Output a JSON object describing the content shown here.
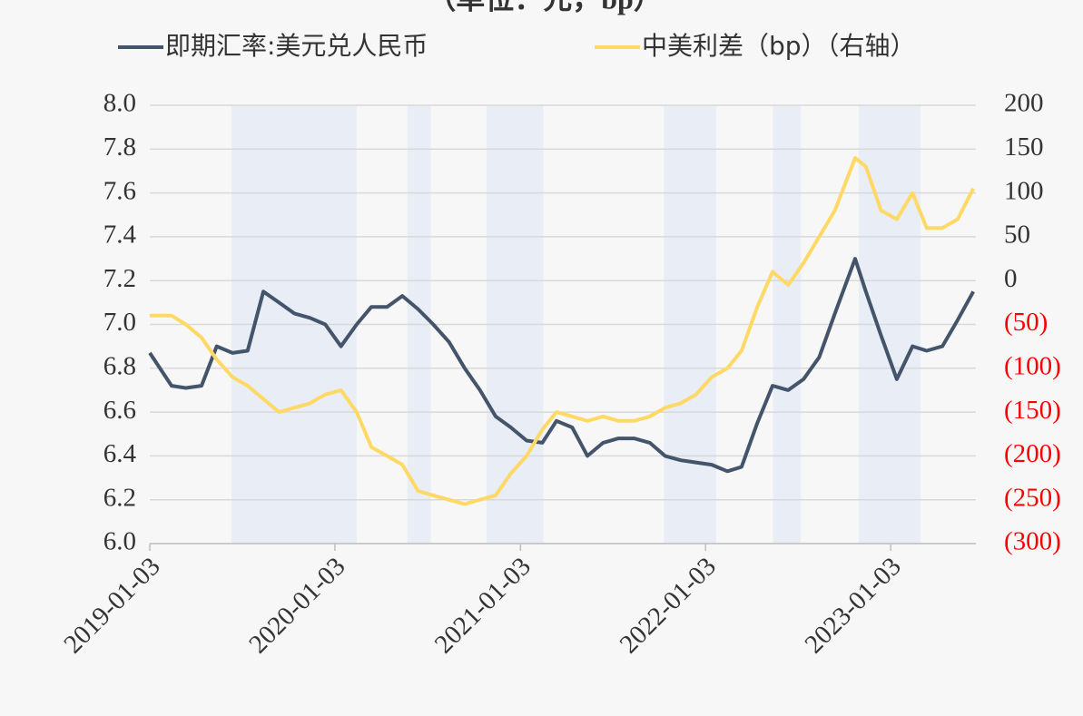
{
  "chart_data": {
    "type": "line",
    "title": "（单位：元，bp）",
    "x": [
      "2019-01-03",
      "2019-02-15",
      "2019-03-15",
      "2019-04-15",
      "2019-05-15",
      "2019-06-15",
      "2019-07-15",
      "2019-08-15",
      "2019-09-15",
      "2019-10-15",
      "2019-11-15",
      "2019-12-15",
      "2020-01-15",
      "2020-02-15",
      "2020-03-15",
      "2020-04-15",
      "2020-05-15",
      "2020-06-15",
      "2020-07-15",
      "2020-08-15",
      "2020-09-15",
      "2020-10-15",
      "2020-11-15",
      "2020-12-15",
      "2021-01-15",
      "2021-02-15",
      "2021-03-15",
      "2021-04-15",
      "2021-05-15",
      "2021-06-15",
      "2021-07-15",
      "2021-08-15",
      "2021-09-15",
      "2021-10-15",
      "2021-11-15",
      "2021-12-15",
      "2022-01-15",
      "2022-02-15",
      "2022-03-15",
      "2022-04-15",
      "2022-05-15",
      "2022-06-15",
      "2022-07-15",
      "2022-08-15",
      "2022-09-15",
      "2022-10-25",
      "2022-11-15",
      "2022-12-15",
      "2023-01-15",
      "2023-02-15",
      "2023-03-15",
      "2023-04-15",
      "2023-05-15",
      "2023-06-15"
    ],
    "series": [
      {
        "name": "即期汇率:美元兑人民币",
        "color": "#44546a",
        "axis": "y",
        "values": [
          6.87,
          6.72,
          6.71,
          6.72,
          6.9,
          6.87,
          6.88,
          7.15,
          7.1,
          7.05,
          7.03,
          7.0,
          6.9,
          7.0,
          7.08,
          7.08,
          7.13,
          7.07,
          7.0,
          6.92,
          6.8,
          6.7,
          6.58,
          6.53,
          6.47,
          6.46,
          6.56,
          6.53,
          6.4,
          6.46,
          6.48,
          6.48,
          6.46,
          6.4,
          6.38,
          6.37,
          6.36,
          6.33,
          6.35,
          6.55,
          6.72,
          6.7,
          6.75,
          6.85,
          7.05,
          7.3,
          7.15,
          6.95,
          6.75,
          6.9,
          6.88,
          6.9,
          7.02,
          7.15
        ]
      },
      {
        "name": "中美利差（bp）（右轴）",
        "color": "#ffd966",
        "axis": "y2",
        "values": [
          -40,
          -40,
          -50,
          -65,
          -90,
          -110,
          -120,
          -135,
          -150,
          -145,
          -140,
          -130,
          -125,
          -150,
          -190,
          -200,
          -210,
          -240,
          -245,
          -250,
          -255,
          -250,
          -245,
          -220,
          -200,
          -170,
          -150,
          -155,
          -160,
          -155,
          -160,
          -160,
          -155,
          -145,
          -140,
          -130,
          -110,
          -100,
          -80,
          -30,
          10,
          -5,
          20,
          50,
          80,
          140,
          130,
          80,
          70,
          100,
          60,
          60,
          70,
          105
        ]
      }
    ],
    "shaded_periods": [
      [
        "2019-06-13",
        "2020-02-15"
      ],
      [
        "2020-05-25",
        "2020-07-10"
      ],
      [
        "2020-10-28",
        "2021-02-17"
      ],
      [
        "2021-10-13",
        "2022-01-24"
      ],
      [
        "2022-05-16",
        "2022-07-10"
      ],
      [
        "2022-11-01",
        "2023-03-03"
      ]
    ],
    "shade_color": "#e8edf6",
    "xlim": [
      "2019-01-03",
      "2023-06-20"
    ],
    "xticks": [
      "2019-01-03",
      "2020-01-03",
      "2021-01-03",
      "2022-01-03",
      "2023-01-03"
    ],
    "ylim": [
      6.0,
      8.0
    ],
    "yticks": [
      {
        "value": 6,
        "label": "6.0"
      },
      6.2,
      6.4,
      6.6,
      6.8,
      {
        "value": 7,
        "label": "7.0"
      },
      7.2,
      7.4,
      7.6,
      7.8,
      {
        "value": 8,
        "label": "8.0"
      }
    ],
    "y2lim": [
      -300,
      200
    ],
    "y2ticks": [
      {
        "value": -300,
        "label": "(300)"
      },
      {
        "value": -250,
        "label": "(250)"
      },
      {
        "value": -200,
        "label": "(200)"
      },
      {
        "value": -150,
        "label": "(150)"
      },
      {
        "value": -100,
        "label": "(100)"
      },
      {
        "value": -50,
        "label": "(50)"
      },
      0,
      50,
      100,
      150,
      200
    ],
    "negative_tick_color": "#ff0000",
    "grid": true,
    "legend": "top"
  }
}
